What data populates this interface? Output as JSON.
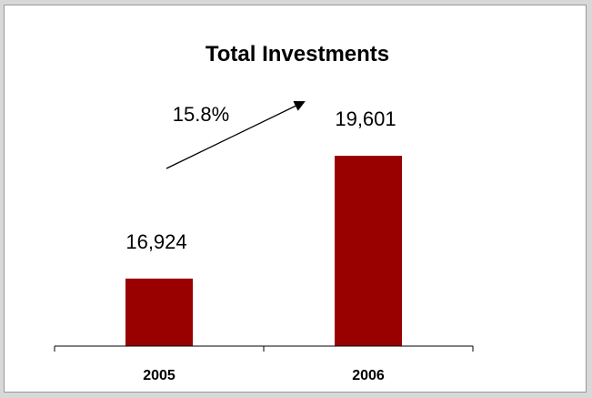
{
  "chart_data": {
    "type": "bar",
    "title": "Total Investments",
    "categories": [
      "2005",
      "2006"
    ],
    "values": [
      16924,
      19601
    ],
    "value_labels": [
      "16,924",
      "19,601"
    ],
    "annotation": "15.8%",
    "bar_color": "#990000",
    "grid": false,
    "legend": "none"
  }
}
